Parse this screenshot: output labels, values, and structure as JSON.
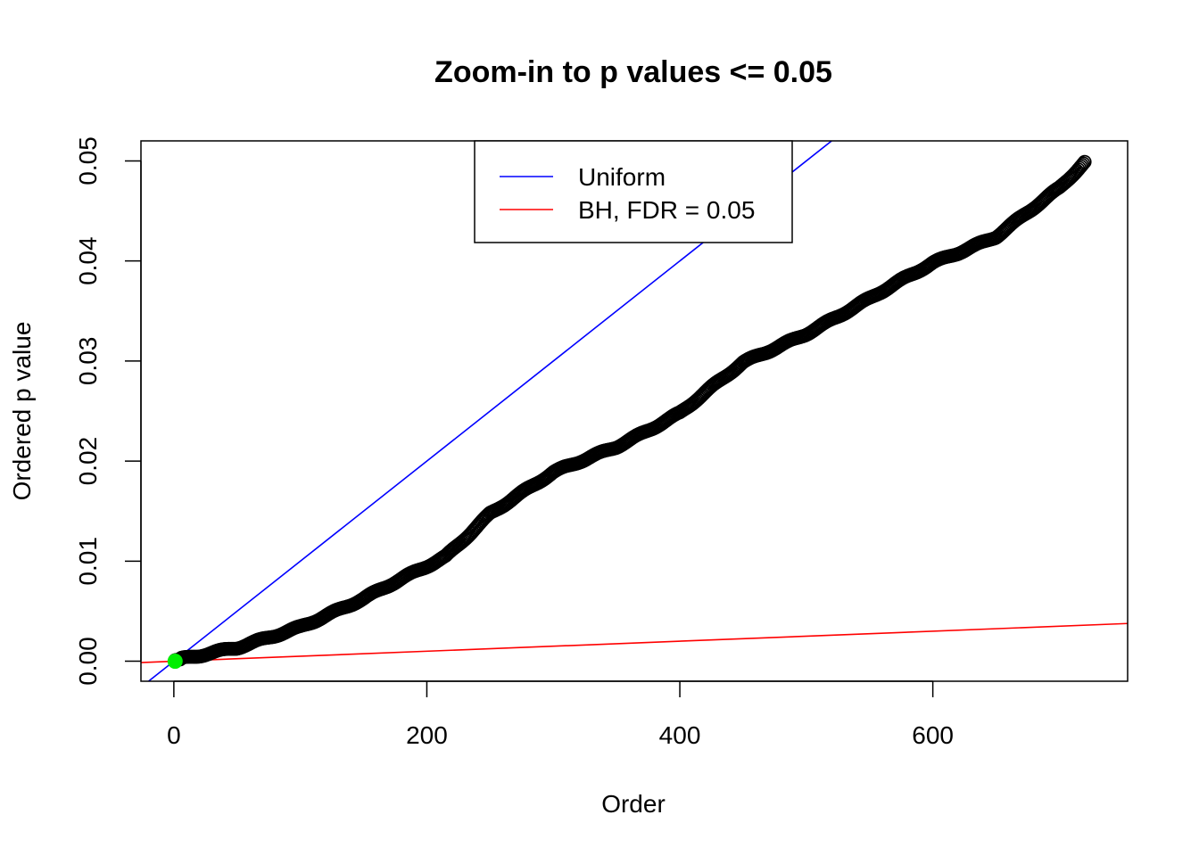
{
  "chart_data": {
    "type": "scatter",
    "title": "Zoom-in to p values <= 0.05",
    "xlabel": "Order",
    "ylabel": "Ordered p value",
    "xlim": [
      -26,
      754
    ],
    "ylim": [
      -0.002,
      0.052
    ],
    "x_ticks": [
      0,
      200,
      400,
      600
    ],
    "x_tick_labels": [
      "0",
      "200",
      "400",
      "600"
    ],
    "y_ticks": [
      0.0,
      0.01,
      0.02,
      0.03,
      0.04,
      0.05
    ],
    "y_tick_labels": [
      "0.00",
      "0.01",
      "0.02",
      "0.03",
      "0.04",
      "0.05"
    ],
    "grid": false,
    "legend_position": "top-center",
    "legend": [
      {
        "label": "Uniform",
        "color": "#0000ff"
      },
      {
        "label": "BH, FDR = 0.05",
        "color": "#ff0000"
      }
    ],
    "lines": [
      {
        "name": "Uniform",
        "color": "#0000ff",
        "intercept": 0,
        "slope": 0.0001
      },
      {
        "name": "BH, FDR = 0.05",
        "color": "#ff0000",
        "intercept": 0,
        "slope": 5e-06
      }
    ],
    "series": [
      {
        "name": "Ordered p values",
        "color": "#000000",
        "n_points": 720,
        "anchors": {
          "x": [
            1,
            20,
            50,
            100,
            150,
            200,
            215,
            250,
            300,
            350,
            400,
            450,
            500,
            550,
            600,
            650,
            700,
            720
          ],
          "y": [
            0.0001,
            0.0005,
            0.0013,
            0.0035,
            0.0062,
            0.0095,
            0.0105,
            0.0148,
            0.0188,
            0.0215,
            0.0248,
            0.0298,
            0.0328,
            0.0362,
            0.0398,
            0.0425,
            0.0472,
            0.0498
          ]
        }
      }
    ],
    "highlight_points": [
      {
        "x": 1,
        "y": 0.0,
        "color": "#00ee00"
      }
    ]
  }
}
